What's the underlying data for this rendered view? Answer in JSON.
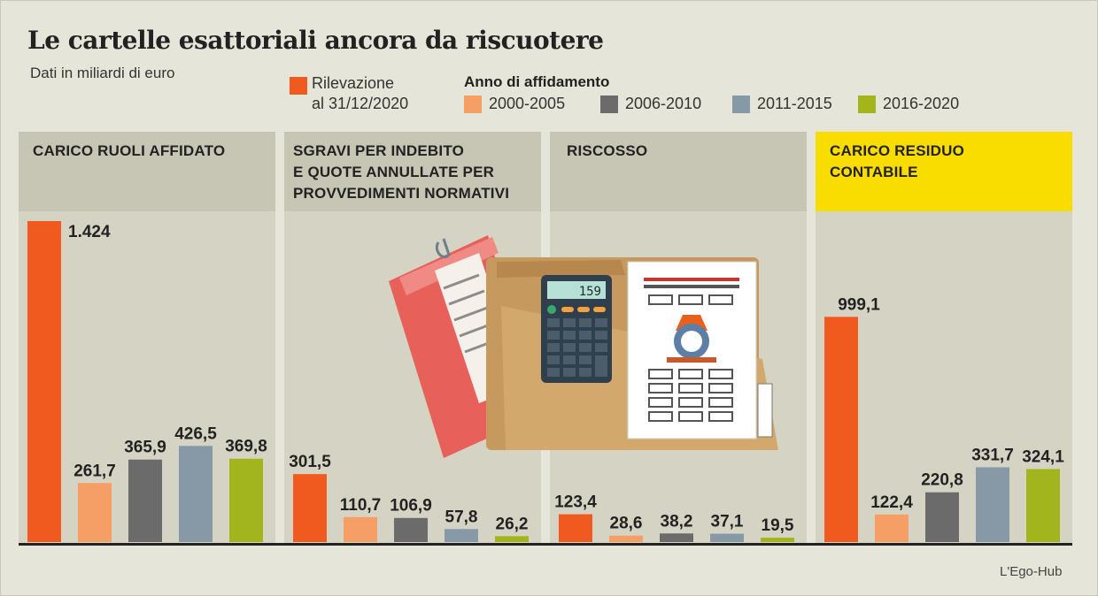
{
  "title": "Le cartelle esattoriali ancora da riscuotere",
  "subtitle": "Dati in miliardi di euro",
  "legend": {
    "main_line1": "Rilevazione",
    "main_line2": "al 31/12/2020",
    "group_title": "Anno di affidamento",
    "items": [
      "2000-2005",
      "2006-2010",
      "2011-2015",
      "2016-2020"
    ]
  },
  "colors": {
    "rilevazione": "#f05a1e",
    "2000-2005": "#f59f66",
    "2006-2010": "#6b6b6b",
    "2011-2015": "#8798a6",
    "2016-2020": "#a3b51c",
    "highlight": "#fadd00"
  },
  "panels": {
    "p1": {
      "title": "CARICO RUOLI AFFIDATO"
    },
    "p2": {
      "line1": "SGRAVI PER INDEBITO",
      "line2": "E QUOTE ANNULLATE PER",
      "line3": "PROVVEDIMENTI NORMATIVI"
    },
    "p3": {
      "title": "RISCOSSO"
    },
    "p4": {
      "line1": "CARICO RESIDUO",
      "line2": "CONTABILE"
    }
  },
  "illustration": {
    "calculator_display": "159"
  },
  "credit": "L'Ego-Hub",
  "chart_data": {
    "type": "bar",
    "series_names": [
      "Rilevazione al 31/12/2020",
      "2000-2005",
      "2006-2010",
      "2011-2015",
      "2016-2020"
    ],
    "panels": [
      {
        "category": "CARICO RUOLI AFFIDATO",
        "values": [
          1424,
          261.7,
          365.9,
          426.5,
          369.8
        ],
        "labels": [
          "1.424",
          "261,7",
          "365,9",
          "426,5",
          "369,8"
        ]
      },
      {
        "category": "SGRAVI PER INDEBITO E QUOTE ANNULLATE PER PROVVEDIMENTI NORMATIVI",
        "values": [
          301.5,
          110.7,
          106.9,
          57.8,
          26.2
        ],
        "labels": [
          "301,5",
          "110,7",
          "106,9",
          "57,8",
          "26,2"
        ]
      },
      {
        "category": "RISCOSSO",
        "values": [
          123.4,
          28.6,
          38.2,
          37.1,
          19.5
        ],
        "labels": [
          "123,4",
          "28,6",
          "38,2",
          "37,1",
          "19,5"
        ]
      },
      {
        "category": "CARICO RESIDUO CONTABILE",
        "values": [
          999.1,
          122.4,
          220.8,
          331.7,
          324.1
        ],
        "labels": [
          "999,1",
          "122,4",
          "220,8",
          "331,7",
          "324,1"
        ]
      }
    ],
    "grid": false,
    "legend_position": "top"
  }
}
